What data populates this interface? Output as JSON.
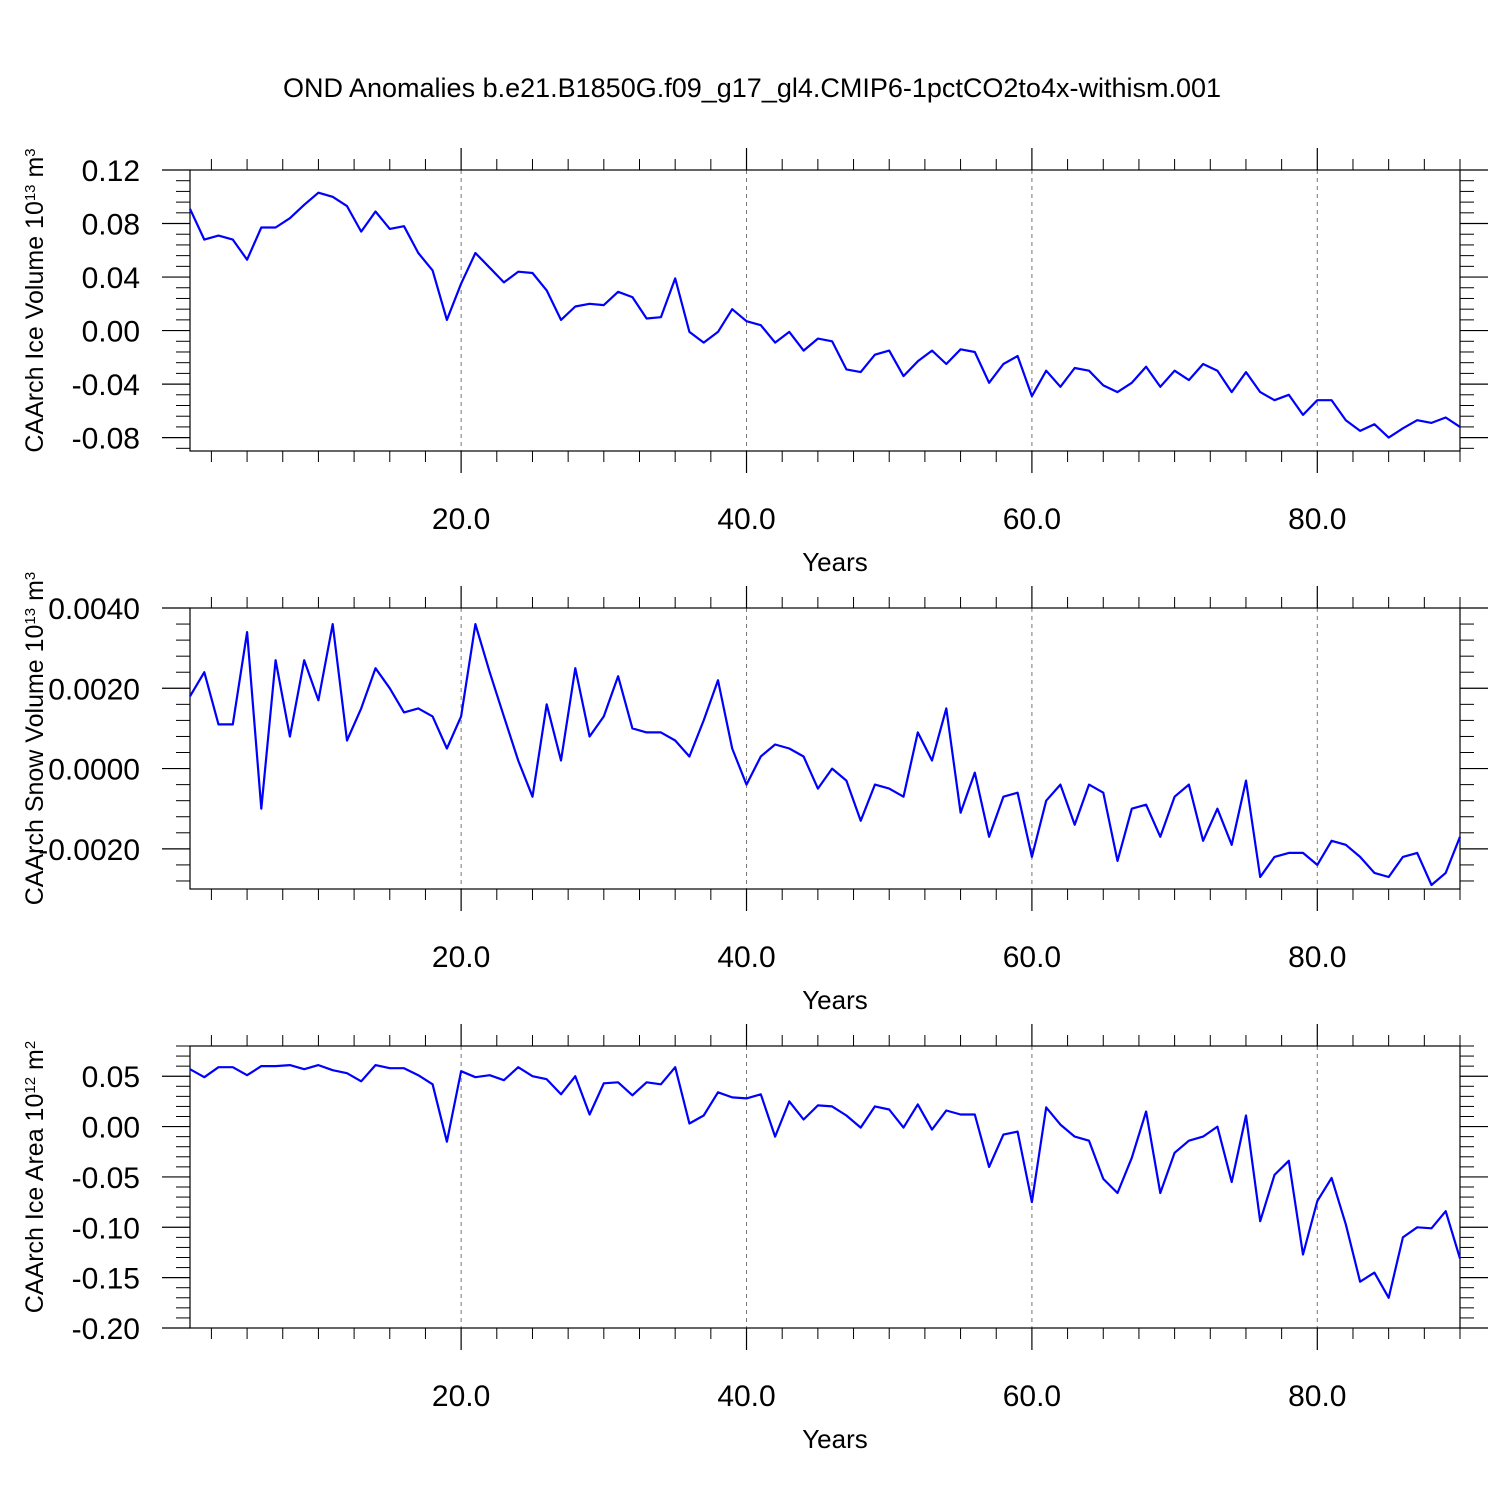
{
  "title": "OND Anomalies b.e21.B1850G.f09_g17_gl4.CMIP6-1pctCO2to4x-withism.001",
  "colors": {
    "series": "#0000ff",
    "axes": "#000000",
    "grid": "#777777"
  },
  "chart_data": [
    {
      "type": "line",
      "xlabel": "Years",
      "ylabel": "CAArch Ice Volume 10",
      "ylabel_exp": "13",
      "ylabel_unit": " m",
      "ylabel_unit_exp": "3",
      "xlim": [
        1,
        90
      ],
      "ylim": [
        -0.09,
        0.12
      ],
      "xticks": [
        20,
        40,
        60,
        80
      ],
      "xtick_labels": [
        "20.0",
        "40.0",
        "60.0",
        "80.0"
      ],
      "yticks": [
        -0.08,
        -0.04,
        0.0,
        0.04,
        0.08,
        0.12
      ],
      "ytick_labels": [
        "-0.08",
        "-0.04",
        "0.00",
        "0.04",
        "0.08",
        "0.12"
      ],
      "grid": "vertical dashed at x ticks",
      "series": [
        {
          "x": [
            1,
            2,
            3,
            4,
            5,
            6,
            7,
            8,
            9,
            10,
            11,
            12,
            13,
            14,
            15,
            16,
            17,
            18,
            19,
            20,
            21,
            22,
            23,
            24,
            25,
            26,
            27,
            28,
            29,
            30,
            31,
            32,
            33,
            34,
            35,
            36,
            37,
            38,
            39,
            40,
            41,
            42,
            43,
            44,
            45,
            46,
            47,
            48,
            49,
            50,
            51,
            52,
            53,
            54,
            55,
            56,
            57,
            58,
            59,
            60,
            61,
            62,
            63,
            64,
            65,
            66,
            67,
            68,
            69,
            70,
            71,
            72,
            73,
            74,
            75,
            76,
            77,
            78,
            79,
            80,
            81,
            82,
            83,
            84,
            85,
            86,
            87,
            88,
            89,
            90
          ],
          "values": [
            0.091,
            0.068,
            0.071,
            0.068,
            0.053,
            0.077,
            0.077,
            0.084,
            0.094,
            0.103,
            0.1,
            0.093,
            0.074,
            0.089,
            0.076,
            0.078,
            0.058,
            0.045,
            0.008,
            0.035,
            0.058,
            0.047,
            0.036,
            0.044,
            0.043,
            0.03,
            0.008,
            0.018,
            0.02,
            0.019,
            0.029,
            0.025,
            0.009,
            0.01,
            0.039,
            -0.001,
            -0.009,
            -0.001,
            0.016,
            0.007,
            0.004,
            -0.009,
            -0.001,
            -0.015,
            -0.006,
            -0.008,
            -0.029,
            -0.031,
            -0.018,
            -0.015,
            -0.034,
            -0.023,
            -0.015,
            -0.025,
            -0.014,
            -0.016,
            -0.039,
            -0.025,
            -0.019,
            -0.049,
            -0.03,
            -0.042,
            -0.028,
            -0.03,
            -0.041,
            -0.046,
            -0.039,
            -0.027,
            -0.042,
            -0.03,
            -0.037,
            -0.025,
            -0.03,
            -0.046,
            -0.031,
            -0.046,
            -0.052,
            -0.048,
            -0.063,
            -0.052,
            -0.052,
            -0.067,
            -0.075,
            -0.07,
            -0.08,
            -0.073,
            -0.067,
            -0.069,
            -0.065,
            -0.072
          ]
        }
      ]
    },
    {
      "type": "line",
      "xlabel": "Years",
      "ylabel": "CAArch Snow Volume 10",
      "ylabel_exp": "13",
      "ylabel_unit": " m",
      "ylabel_unit_exp": "3",
      "xlim": [
        1,
        90
      ],
      "ylim": [
        -0.003,
        0.004
      ],
      "xticks": [
        20,
        40,
        60,
        80
      ],
      "xtick_labels": [
        "20.0",
        "40.0",
        "60.0",
        "80.0"
      ],
      "yticks": [
        -0.002,
        0.0,
        0.002,
        0.004
      ],
      "ytick_labels": [
        "-0.0020",
        "0.0000",
        "0.0020",
        "0.0040"
      ],
      "grid": "vertical dashed at x ticks",
      "series": [
        {
          "x": [
            1,
            2,
            3,
            4,
            5,
            6,
            7,
            8,
            9,
            10,
            11,
            12,
            13,
            14,
            15,
            16,
            17,
            18,
            19,
            20,
            21,
            22,
            23,
            24,
            25,
            26,
            27,
            28,
            29,
            30,
            31,
            32,
            33,
            34,
            35,
            36,
            37,
            38,
            39,
            40,
            41,
            42,
            43,
            44,
            45,
            46,
            47,
            48,
            49,
            50,
            51,
            52,
            53,
            54,
            55,
            56,
            57,
            58,
            59,
            60,
            61,
            62,
            63,
            64,
            65,
            66,
            67,
            68,
            69,
            70,
            71,
            72,
            73,
            74,
            75,
            76,
            77,
            78,
            79,
            80,
            81,
            82,
            83,
            84,
            85,
            86,
            87,
            88,
            89,
            90
          ],
          "values": [
            0.0018,
            0.0024,
            0.0011,
            0.0011,
            0.0034,
            -0.001,
            0.0027,
            0.0008,
            0.0027,
            0.0017,
            0.0036,
            0.0007,
            0.0015,
            0.0025,
            0.002,
            0.0014,
            0.0015,
            0.0013,
            0.0005,
            0.0013,
            0.0036,
            0.0024,
            0.0013,
            0.0002,
            -0.0007,
            0.0016,
            0.0002,
            0.0025,
            0.0008,
            0.0013,
            0.0023,
            0.001,
            0.0009,
            0.0009,
            0.0007,
            0.0003,
            0.0012,
            0.0022,
            0.0005,
            -0.0004,
            0.0003,
            0.0006,
            0.0005,
            0.0003,
            -0.0005,
            0.0,
            -0.0003,
            -0.0013,
            -0.0004,
            -0.0005,
            -0.0007,
            0.0009,
            0.0002,
            0.0015,
            -0.0011,
            -0.0001,
            -0.0017,
            -0.0007,
            -0.0006,
            -0.0022,
            -0.0008,
            -0.0004,
            -0.0014,
            -0.0004,
            -0.0006,
            -0.0023,
            -0.001,
            -0.0009,
            -0.0017,
            -0.0007,
            -0.0004,
            -0.0018,
            -0.001,
            -0.0019,
            -0.0003,
            -0.0027,
            -0.0022,
            -0.0021,
            -0.0021,
            -0.0024,
            -0.0018,
            -0.0019,
            -0.0022,
            -0.0026,
            -0.0027,
            -0.0022,
            -0.0021,
            -0.0029,
            -0.0026,
            -0.0017
          ]
        }
      ]
    },
    {
      "type": "line",
      "xlabel": "Years",
      "ylabel": "CAArch Ice Area 10",
      "ylabel_exp": "12",
      "ylabel_unit": " m",
      "ylabel_unit_exp": "2",
      "xlim": [
        1,
        90
      ],
      "ylim": [
        -0.2,
        0.08
      ],
      "xticks": [
        20,
        40,
        60,
        80
      ],
      "xtick_labels": [
        "20.0",
        "40.0",
        "60.0",
        "80.0"
      ],
      "yticks": [
        -0.2,
        -0.15,
        -0.1,
        -0.05,
        0.0,
        0.05
      ],
      "ytick_labels": [
        "-0.20",
        "-0.15",
        "-0.10",
        "-0.05",
        "0.00",
        "0.05"
      ],
      "grid": "vertical dashed at x ticks",
      "series": [
        {
          "x": [
            1,
            2,
            3,
            4,
            5,
            6,
            7,
            8,
            9,
            10,
            11,
            12,
            13,
            14,
            15,
            16,
            17,
            18,
            19,
            20,
            21,
            22,
            23,
            24,
            25,
            26,
            27,
            28,
            29,
            30,
            31,
            32,
            33,
            34,
            35,
            36,
            37,
            38,
            39,
            40,
            41,
            42,
            43,
            44,
            45,
            46,
            47,
            48,
            49,
            50,
            51,
            52,
            53,
            54,
            55,
            56,
            57,
            58,
            59,
            60,
            61,
            62,
            63,
            64,
            65,
            66,
            67,
            68,
            69,
            70,
            71,
            72,
            73,
            74,
            75,
            76,
            77,
            78,
            79,
            80,
            81,
            82,
            83,
            84,
            85,
            86,
            87,
            88,
            89,
            90
          ],
          "values": [
            0.057,
            0.049,
            0.059,
            0.059,
            0.051,
            0.06,
            0.06,
            0.061,
            0.057,
            0.061,
            0.056,
            0.053,
            0.045,
            0.061,
            0.058,
            0.058,
            0.051,
            0.042,
            -0.015,
            0.055,
            0.049,
            0.051,
            0.046,
            0.059,
            0.05,
            0.047,
            0.032,
            0.05,
            0.012,
            0.043,
            0.044,
            0.031,
            0.044,
            0.042,
            0.059,
            0.003,
            0.011,
            0.034,
            0.029,
            0.028,
            0.032,
            -0.01,
            0.025,
            0.007,
            0.021,
            0.02,
            0.011,
            -0.001,
            0.02,
            0.017,
            -0.001,
            0.022,
            -0.003,
            0.016,
            0.012,
            0.012,
            -0.04,
            -0.008,
            -0.005,
            -0.075,
            0.019,
            0.002,
            -0.01,
            -0.014,
            -0.052,
            -0.066,
            -0.031,
            0.015,
            -0.066,
            -0.026,
            -0.014,
            -0.01,
            0.0,
            -0.055,
            0.011,
            -0.094,
            -0.048,
            -0.034,
            -0.127,
            -0.074,
            -0.051,
            -0.097,
            -0.154,
            -0.145,
            -0.17,
            -0.11,
            -0.1,
            -0.101,
            -0.084,
            -0.131
          ]
        }
      ]
    }
  ]
}
